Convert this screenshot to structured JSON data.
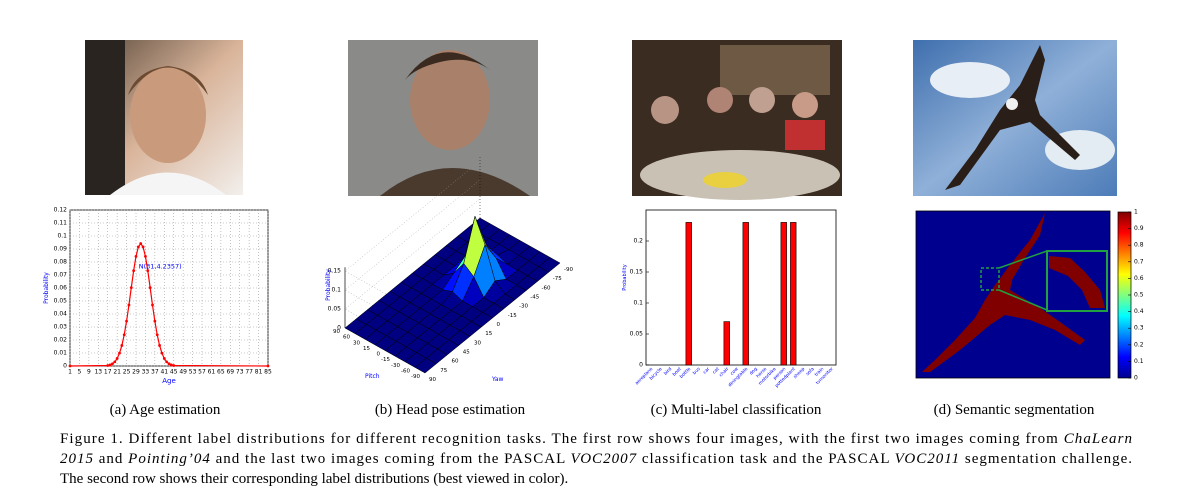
{
  "panels": [
    {
      "caption": "(a) Age estimation",
      "chart_data": {
        "type": "line",
        "xlabel": "Age",
        "ylabel": "Probability",
        "annotation": "N(31,4.2357)",
        "x": [
          1,
          17,
          18,
          19,
          20,
          21,
          22,
          23,
          24,
          25,
          26,
          27,
          28,
          29,
          30,
          31,
          32,
          33,
          34,
          35,
          36,
          37,
          38,
          39,
          40,
          41,
          42,
          43,
          44,
          45,
          85
        ],
        "values": [
          0,
          0.0004,
          0.0008,
          0.0017,
          0.0032,
          0.0058,
          0.0099,
          0.0158,
          0.024,
          0.0345,
          0.0469,
          0.0603,
          0.0733,
          0.0843,
          0.0916,
          0.0942,
          0.0916,
          0.0843,
          0.0733,
          0.0603,
          0.0469,
          0.0345,
          0.024,
          0.0158,
          0.0099,
          0.0058,
          0.0032,
          0.0017,
          0.0008,
          0.0004,
          0
        ],
        "color": "#ff0000",
        "xlim": [
          1,
          85
        ],
        "xticks": [
          1,
          5,
          9,
          13,
          17,
          21,
          25,
          29,
          33,
          37,
          41,
          45,
          49,
          53,
          57,
          61,
          65,
          69,
          73,
          77,
          81,
          85
        ],
        "ylim": [
          0,
          0.12
        ],
        "yticks": [
          0,
          0.01,
          0.02,
          0.03,
          0.04,
          0.05,
          0.06,
          0.07,
          0.08,
          0.09,
          0.1,
          0.11,
          0.12
        ],
        "grid": true
      }
    },
    {
      "caption": "(b) Head pose estimation",
      "chart_data": {
        "type": "surface3d",
        "xlabel": "Yaw",
        "ylabel": "Pitch",
        "zlabel": "Probability",
        "yaw": [
          90,
          75,
          60,
          45,
          30,
          15,
          0,
          -15,
          -30,
          -45,
          -60,
          -75,
          -90
        ],
        "pitch": [
          90,
          60,
          30,
          15,
          0,
          -15,
          -30,
          -60,
          -90
        ],
        "values": [
          [
            0,
            0,
            0,
            0,
            0,
            0,
            0,
            0,
            0,
            0,
            0,
            0,
            0
          ],
          [
            0,
            0,
            0,
            0,
            0,
            0,
            0,
            0,
            0,
            0,
            0,
            0,
            0
          ],
          [
            0,
            0,
            0,
            0,
            0,
            0,
            0,
            0,
            0,
            0,
            0,
            0,
            0
          ],
          [
            0,
            0,
            0,
            0,
            0,
            0,
            0,
            0.02,
            0.04,
            0.02,
            0,
            0,
            0
          ],
          [
            0,
            0,
            0,
            0,
            0,
            0,
            0.01,
            0.06,
            0.16,
            0.06,
            0.01,
            0,
            0
          ],
          [
            0,
            0,
            0,
            0,
            0,
            0,
            0,
            0.04,
            0.1,
            0.04,
            0,
            0,
            0
          ],
          [
            0,
            0,
            0,
            0,
            0,
            0,
            0,
            0,
            0.02,
            0,
            0,
            0,
            0
          ],
          [
            0,
            0,
            0,
            0,
            0,
            0,
            0,
            0,
            0,
            0,
            0,
            0,
            0
          ],
          [
            0,
            0,
            0,
            0,
            0,
            0,
            0,
            0,
            0,
            0,
            0,
            0,
            0
          ]
        ],
        "zlim": [
          0,
          0.16
        ],
        "zticks": [
          0,
          0.05,
          0.1,
          0.15
        ],
        "colormap": "jet"
      }
    },
    {
      "caption": "(c) Multi-label classification",
      "chart_data": {
        "type": "bar",
        "ylabel": "Probability",
        "categories": [
          "aeroplane",
          "bicycle",
          "bird",
          "boat",
          "bottle",
          "bus",
          "car",
          "cat",
          "chair",
          "cow",
          "diningtable",
          "dog",
          "horse",
          "motorbike",
          "person",
          "pottedplant",
          "sheep",
          "sofa",
          "train",
          "tvmonitor"
        ],
        "values": [
          0,
          0,
          0,
          0,
          0.23,
          0,
          0,
          0,
          0.07,
          0,
          0.23,
          0,
          0,
          0,
          0.23,
          0.23,
          0,
          0,
          0,
          0
        ],
        "color": "#ff0000",
        "ylim": [
          0,
          0.25
        ],
        "yticks": [
          0,
          0.05,
          0.1,
          0.15,
          0.2
        ]
      }
    },
    {
      "caption": "(d) Semantic segmentation",
      "chart_data": {
        "type": "heatmap",
        "colormap": "jet",
        "clim": [
          0,
          1
        ],
        "cticks": [
          0,
          0.1,
          0.2,
          0.3,
          0.4,
          0.5,
          0.6,
          0.7,
          0.8,
          0.9,
          1
        ]
      }
    }
  ],
  "caption": {
    "lines": [
      [
        {
          "text": "Figure 1.  Different label distributions for different recognition tasks. The first row shows four images, with the first two images coming from ",
          "italic": false
        },
        {
          "text": "ChaLearn",
          "italic": true
        }
      ],
      [
        {
          "text": "2015",
          "italic": true
        },
        {
          "text": " and ",
          "italic": false
        },
        {
          "text": "Pointing’04",
          "italic": true
        },
        {
          "text": " and the last two images coming from the PASCAL ",
          "italic": false
        },
        {
          "text": "VOC2007",
          "italic": true
        },
        {
          "text": " classification task and the PASCAL ",
          "italic": false
        },
        {
          "text": "VOC2011",
          "italic": true
        },
        {
          "text": " segmentation challenge.",
          "italic": false
        }
      ],
      [
        {
          "text": "The second row shows their corresponding label distributions (best viewed in color).",
          "italic": false
        }
      ]
    ]
  }
}
